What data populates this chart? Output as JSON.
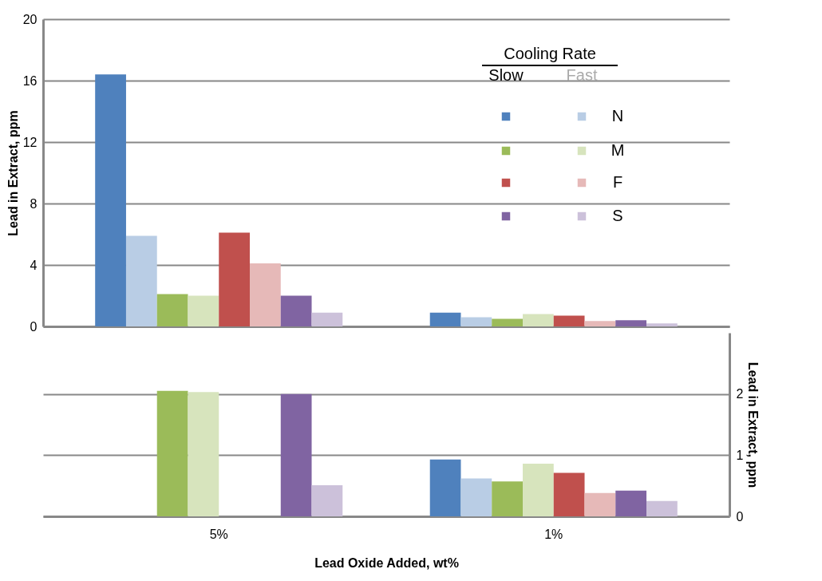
{
  "chart_data": [
    {
      "type": "bar",
      "ylabel": "Lead in Extract, ppm",
      "ylim": [
        0,
        20
      ],
      "yticks": [
        0,
        4,
        8,
        12,
        16,
        20
      ],
      "grid": "y",
      "tick_labels": "y",
      "legend": "top right",
      "legend_title": "Cooling Rate",
      "annotations": [
        "Slow",
        "Fast"
      ],
      "series": [
        {
          "color": "#4f81bd",
          "values": [
            16.4,
            0.9
          ]
        },
        {
          "name": "N",
          "color": "#b9cde5",
          "values": [
            5.9,
            0.6
          ]
        },
        {
          "color": "#9bbb59",
          "values": [
            2.1,
            0.5
          ]
        },
        {
          "name": "M",
          "color": "#d7e4bd",
          "values": [
            2.0,
            0.8
          ]
        },
        {
          "color": "#c0504d",
          "values": [
            6.1,
            0.7
          ]
        },
        {
          "name": "F",
          "color": "#e6b9b8",
          "values": [
            4.1,
            0.35
          ]
        },
        {
          "color": "#8064a2",
          "values": [
            2.0,
            0.4
          ]
        },
        {
          "name": "S",
          "color": "#ccc1da",
          "values": [
            0.9,
            0.2
          ]
        }
      ]
    },
    {
      "type": "bar",
      "xlabel": "Lead Oxide Added, wt%",
      "y2label": "Lead in Extract, ppm",
      "categories": [
        "5%",
        "1%"
      ],
      "y2lim": [
        0,
        3
      ],
      "y2ticks": [
        0,
        1,
        2
      ],
      "grid": "y",
      "series": [
        {
          "axis": "y2",
          "color": "#4f81bd",
          "values": [
            null,
            0.93
          ]
        },
        {
          "axis": "y2",
          "color": "#b9cde5",
          "values": [
            null,
            0.62
          ]
        },
        {
          "axis": "y2",
          "color": "#9bbb59",
          "values": [
            2.05,
            0.57
          ]
        },
        {
          "axis": "y2",
          "color": "#d7e4bd",
          "values": [
            2.03,
            0.86
          ]
        },
        {
          "axis": "y2",
          "color": "#c0504d",
          "values": [
            null,
            0.71
          ]
        },
        {
          "axis": "y2",
          "color": "#e6b9b8",
          "values": [
            null,
            0.38
          ]
        },
        {
          "axis": "y2",
          "color": "#8064a2",
          "values": [
            2.0,
            0.42
          ]
        },
        {
          "axis": "y2",
          "color": "#ccc1da",
          "values": [
            0.51,
            0.25
          ]
        }
      ]
    }
  ]
}
